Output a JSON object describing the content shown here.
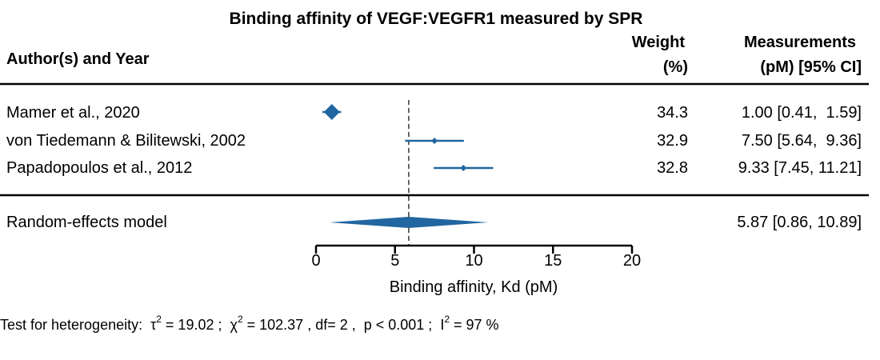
{
  "chart_data": {
    "type": "forest",
    "title": "Binding affinity of VEGF:VEGFR1 measured by SPR",
    "columns": {
      "study": "Author(s) and Year",
      "weight_line1": "Weight",
      "weight_line2": "(%)",
      "measure_line1": "Measurements",
      "measure_line2": "(pM) [95% CI]"
    },
    "studies": [
      {
        "label": "Mamer et al., 2020",
        "estimate": 1.0,
        "ci": [
          0.41,
          1.59
        ],
        "weight": "34.3",
        "ci_text": "1.00 [0.41,  1.59]"
      },
      {
        "label": "von Tiedemann & Bilitewski, 2002",
        "estimate": 7.5,
        "ci": [
          5.64,
          9.36
        ],
        "weight": "32.9",
        "ci_text": "7.50 [5.64,  9.36]"
      },
      {
        "label": "Papadopoulos et al., 2012",
        "estimate": 9.33,
        "ci": [
          7.45,
          11.21
        ],
        "weight": "32.8",
        "ci_text": "9.33 [7.45, 11.21]"
      }
    ],
    "pooled": {
      "label": "Random-effects model",
      "estimate": 5.87,
      "ci": [
        0.86,
        10.89
      ],
      "ci_text": "5.87 [0.86, 10.89]"
    },
    "xlabel": "Binding affinity, Kd (pM)",
    "xlim": [
      0,
      20
    ],
    "xticks": [
      0,
      5,
      10,
      15,
      20
    ],
    "reference_line": 5.87,
    "heterogeneity": {
      "prefix": "Test for heterogeneity:  ",
      "tau2": " = 19.02 ;  ",
      "chi2": " = 102.37 , df= 2 ,  p < 0.001 ;  ",
      "i2": " = 97 %"
    },
    "colors": {
      "marker": "#2166a0",
      "text": "#000000"
    }
  }
}
